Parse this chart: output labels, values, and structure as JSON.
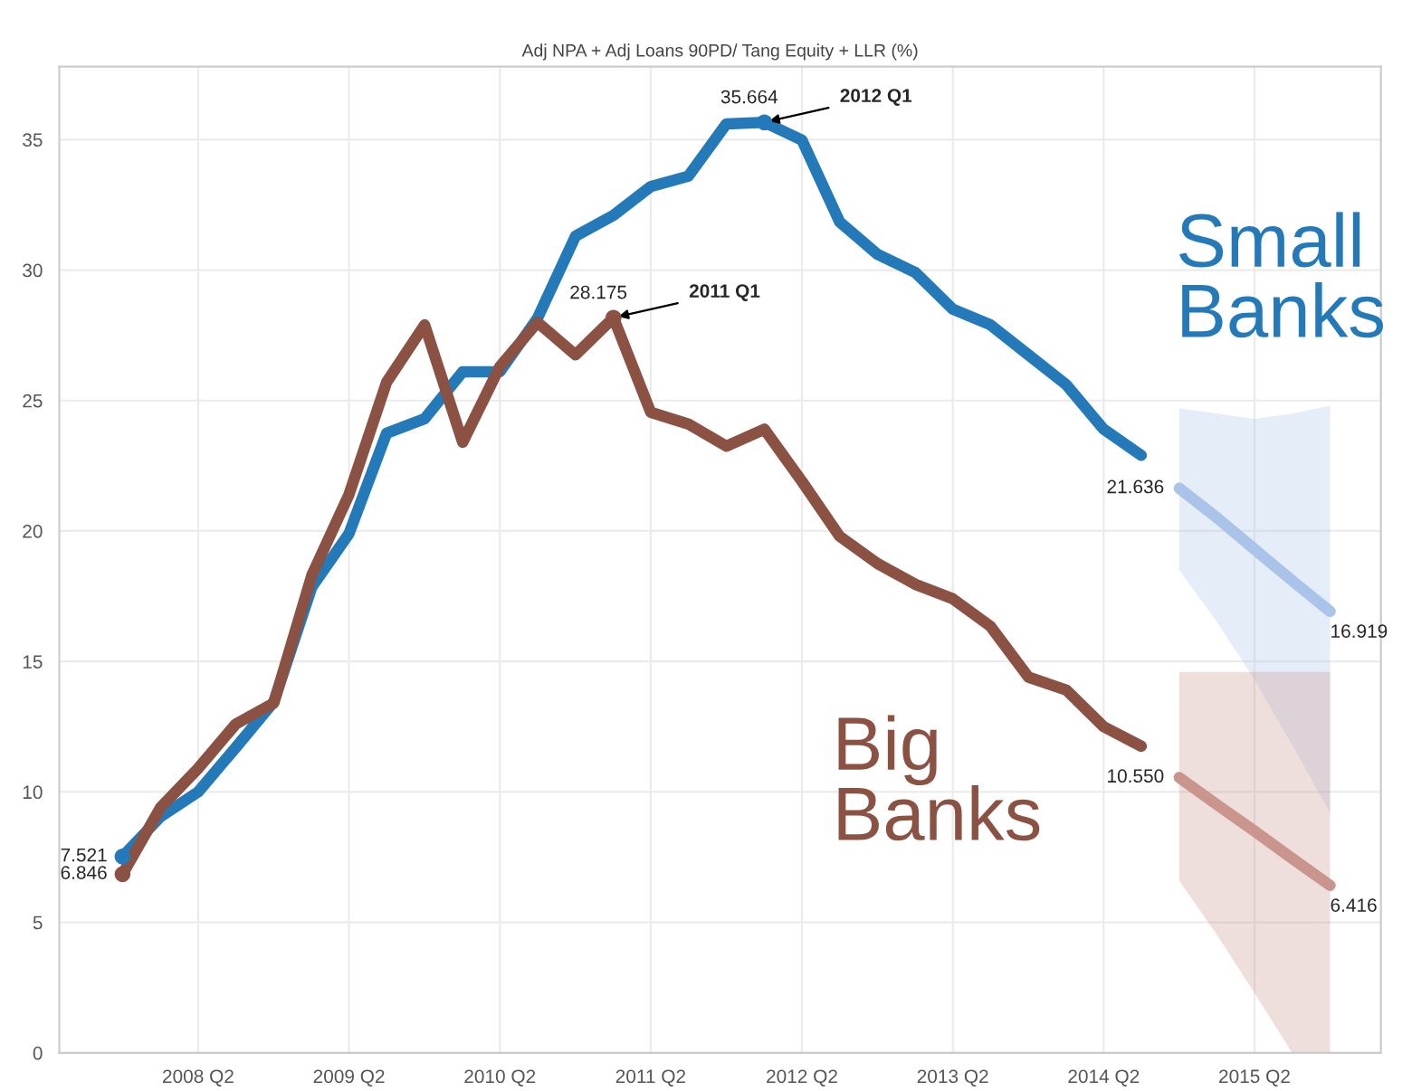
{
  "chart_data": {
    "type": "line",
    "title": "Adj NPA + Adj Loans 90PD/ Tang Equity + LLR (%)",
    "xlim": [
      "2007-05",
      "2016-02"
    ],
    "ylim": [
      0,
      37.8
    ],
    "xticks": [
      {
        "value": "2008-04",
        "label": "2008 Q2"
      },
      {
        "value": "2009-04",
        "label": "2009 Q2"
      },
      {
        "value": "2010-04",
        "label": "2010 Q2"
      },
      {
        "value": "2011-04",
        "label": "2011 Q2"
      },
      {
        "value": "2012-04",
        "label": "2012 Q2"
      },
      {
        "value": "2013-04",
        "label": "2013 Q2"
      },
      {
        "value": "2014-04",
        "label": "2014 Q2"
      },
      {
        "value": "2015-04",
        "label": "2015 Q2"
      }
    ],
    "yticks": [
      0,
      5,
      10,
      15,
      20,
      25,
      30,
      35
    ],
    "grid": true,
    "marker": "none",
    "line_style": "solid",
    "series": [
      {
        "name": "Small Banks",
        "color": "#2479b9",
        "x": [
          "2007-10",
          "2008-01",
          "2008-04",
          "2008-07",
          "2008-10",
          "2009-01",
          "2009-04",
          "2009-07",
          "2009-10",
          "2010-01",
          "2010-04",
          "2010-07",
          "2010-10",
          "2011-01",
          "2011-04",
          "2011-07",
          "2011-10",
          "2012-01",
          "2012-04",
          "2012-07",
          "2012-10",
          "2013-01",
          "2013-04",
          "2013-07",
          "2013-10",
          "2014-01",
          "2014-04",
          "2014-07"
        ],
        "values": [
          7.521,
          9.05,
          10.0,
          11.7,
          13.45,
          17.85,
          19.9,
          23.75,
          24.3,
          26.1,
          26.1,
          28.15,
          31.3,
          32.1,
          33.2,
          33.6,
          35.6,
          35.664,
          34.98,
          31.85,
          30.6,
          29.9,
          28.5,
          27.9,
          26.75,
          25.6,
          23.9,
          22.9
        ],
        "value_labels": [
          "7.521",
          null,
          null,
          null,
          null,
          null,
          null,
          null,
          null,
          null,
          null,
          null,
          null,
          null,
          null,
          null,
          null,
          "35.664",
          null,
          null,
          null,
          null,
          null,
          null,
          null,
          null,
          null,
          null
        ]
      },
      {
        "name": "Big Banks",
        "color": "#8b5143",
        "x": [
          "2007-10",
          "2008-01",
          "2008-04",
          "2008-07",
          "2008-10",
          "2009-01",
          "2009-04",
          "2009-07",
          "2009-10",
          "2010-01",
          "2010-04",
          "2010-07",
          "2010-10",
          "2011-01",
          "2011-04",
          "2011-07",
          "2011-10",
          "2012-01",
          "2012-04",
          "2012-07",
          "2012-10",
          "2013-01",
          "2013-04",
          "2013-07",
          "2013-10",
          "2014-01",
          "2014-04",
          "2014-07"
        ],
        "values": [
          6.846,
          9.4,
          10.9,
          12.6,
          13.4,
          18.3,
          21.4,
          25.7,
          27.9,
          23.4,
          26.3,
          28.0,
          26.75,
          28.175,
          24.55,
          24.1,
          23.25,
          23.9,
          21.9,
          19.8,
          18.75,
          17.95,
          17.4,
          16.35,
          14.4,
          13.9,
          12.5,
          11.75
        ],
        "value_labels": [
          "6.846",
          null,
          null,
          null,
          null,
          null,
          null,
          null,
          null,
          null,
          null,
          null,
          null,
          "28.175",
          null,
          null,
          null,
          null,
          null,
          null,
          null,
          null,
          null,
          null,
          null,
          null,
          null,
          null
        ]
      },
      {
        "color": "#a9c4e8",
        "x": [
          "2014-10",
          "2015-01",
          "2015-04",
          "2015-07",
          "2015-10"
        ],
        "values": [
          21.636,
          20.5,
          19.3,
          18.1,
          16.919
        ],
        "lower": [
          18.5,
          16.5,
          14.3,
          11.8,
          9.2
        ],
        "upper": [
          24.7,
          24.5,
          24.3,
          24.5,
          24.8
        ],
        "value_labels": [
          "21.636",
          null,
          null,
          null,
          "16.919"
        ]
      },
      {
        "color": "#c9958c",
        "x": [
          "2014-10",
          "2015-01",
          "2015-04",
          "2015-07",
          "2015-10"
        ],
        "values": [
          10.55,
          9.5,
          8.5,
          7.45,
          6.416
        ],
        "lower": [
          6.6,
          4.5,
          2.3,
          0,
          0
        ],
        "upper": [
          14.6,
          14.6,
          14.6,
          14.6,
          14.6
        ],
        "value_labels": [
          "10.550",
          null,
          null,
          null,
          "6.416"
        ]
      }
    ],
    "annotations": [
      {
        "text": "2012 Q1",
        "x": "2012-01",
        "y": 35.664
      },
      {
        "text": "2011 Q1",
        "x": "2011-01",
        "y": 28.175
      }
    ]
  }
}
